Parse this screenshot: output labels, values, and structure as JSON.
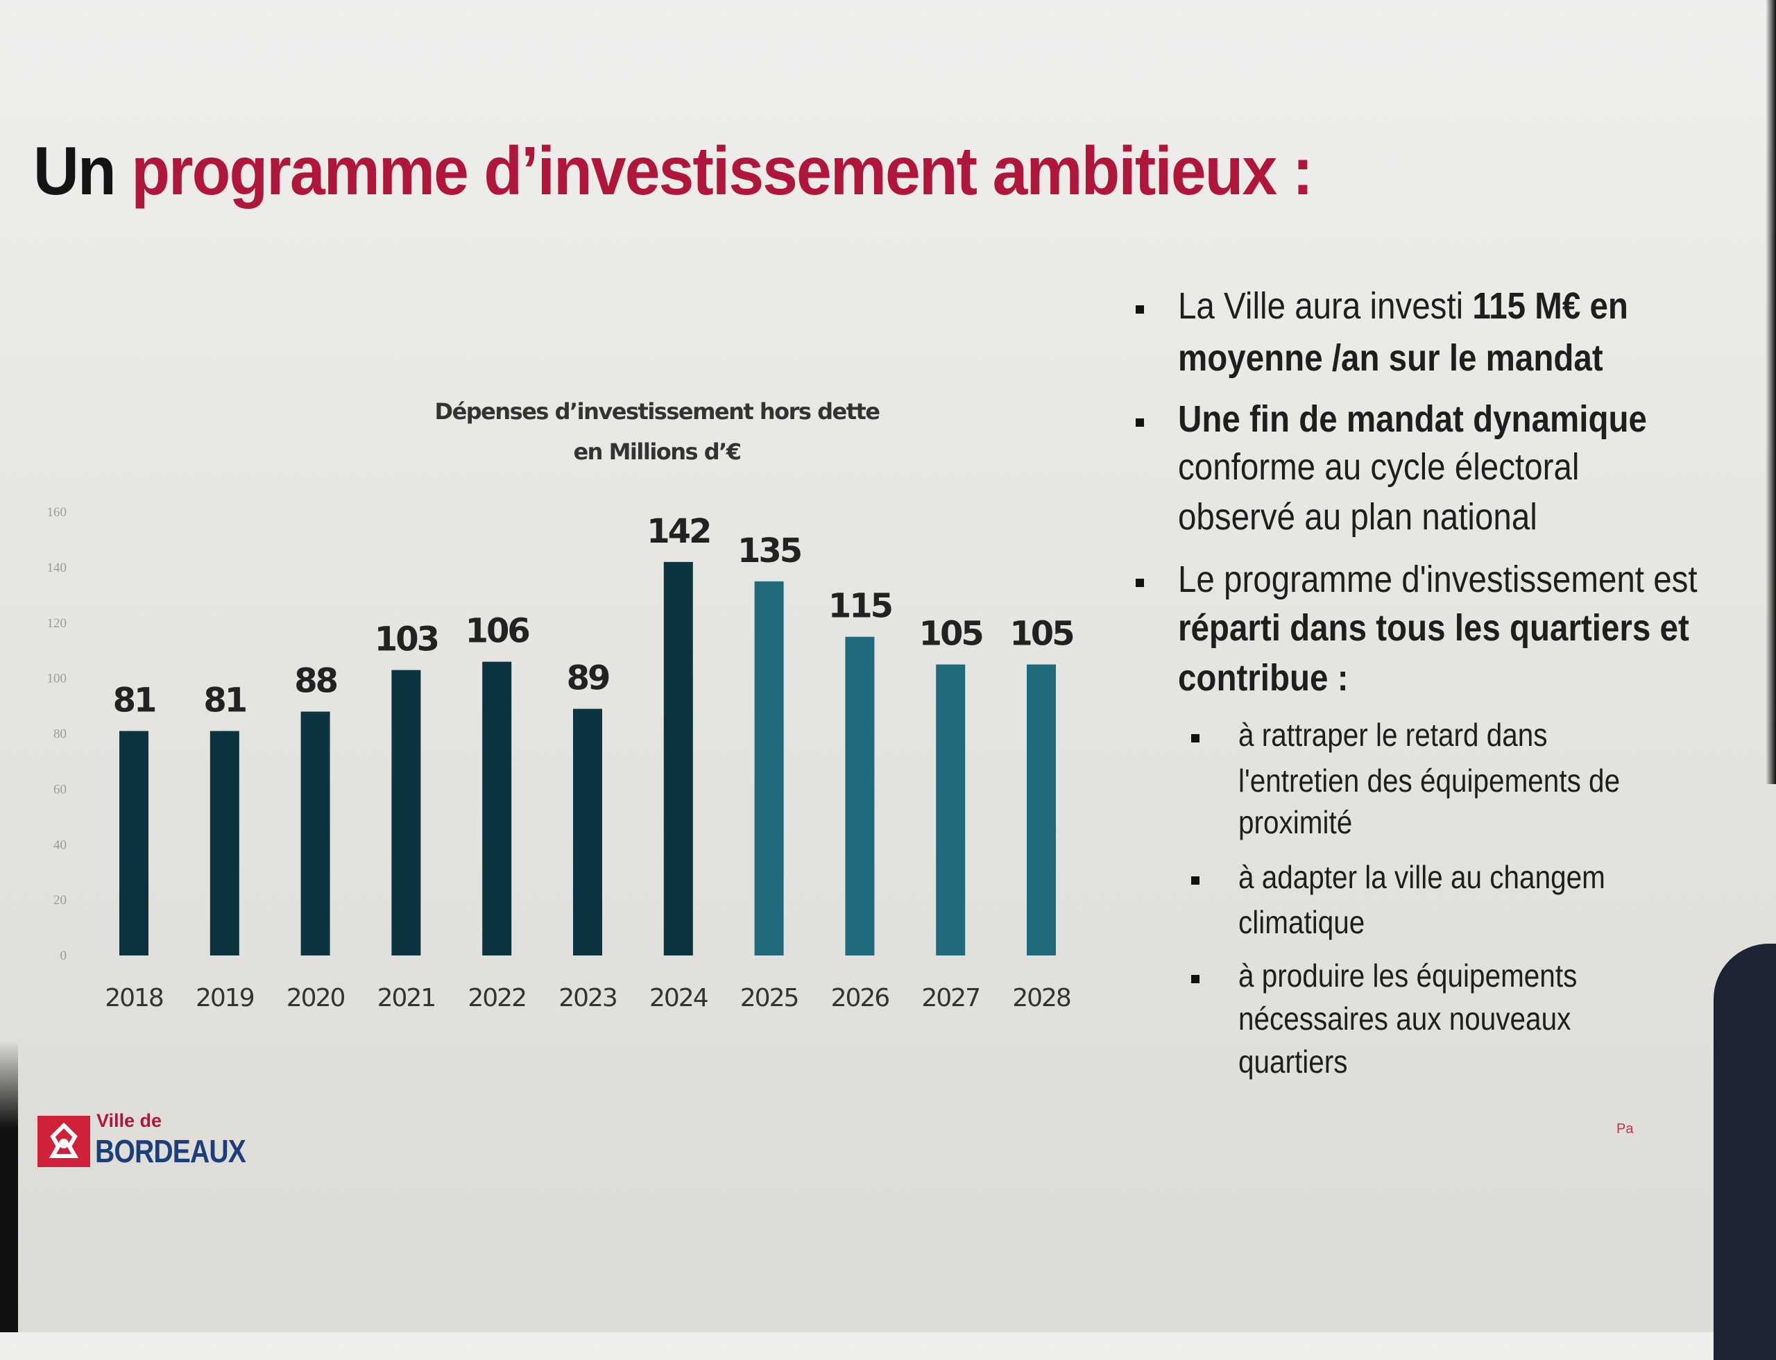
{
  "slide": {
    "title_part1": "Un ",
    "title_part2": "programme d’investissement ambitieux :",
    "logo": {
      "line1": "Ville de",
      "line2": "BORDEAUX"
    },
    "page_mark": "Pa"
  },
  "bullets": [
    {
      "level": 1,
      "lines": [
        [
          {
            "t": "La Ville aura investi ",
            "b": false
          },
          {
            "t": "115 M€ en",
            "b": true
          }
        ],
        [
          {
            "t": "moyenne /an sur le mandat",
            "b": true
          }
        ]
      ]
    },
    {
      "level": 1,
      "lines": [
        [
          {
            "t": "Une fin de mandat dynamique",
            "b": true
          }
        ],
        [
          {
            "t": "conforme au cycle électoral",
            "b": false
          }
        ],
        [
          {
            "t": "observé au plan national",
            "b": false
          }
        ]
      ]
    },
    {
      "level": 1,
      "lines": [
        [
          {
            "t": "Le programme d'investissement est",
            "b": false
          }
        ],
        [
          {
            "t": "réparti dans tous les quartiers et",
            "b": true
          }
        ],
        [
          {
            "t": "contribue :",
            "b": true
          }
        ]
      ]
    },
    {
      "level": 2,
      "lines": [
        [
          {
            "t": "à rattraper le retard dans",
            "b": false
          }
        ],
        [
          {
            "t": "l'entretien des équipements de",
            "b": false
          }
        ],
        [
          {
            "t": "proximité",
            "b": false
          }
        ]
      ]
    },
    {
      "level": 2,
      "lines": [
        [
          {
            "t": "à adapter la ville au changem",
            "b": false
          }
        ],
        [
          {
            "t": "climatique",
            "b": false
          }
        ]
      ]
    },
    {
      "level": 2,
      "lines": [
        [
          {
            "t": "à produire les équipements",
            "b": false
          }
        ],
        [
          {
            "t": "nécessaires aux nouveaux",
            "b": false
          }
        ],
        [
          {
            "t": "quartiers",
            "b": false
          }
        ]
      ]
    }
  ],
  "chart_data": {
    "type": "bar",
    "title": "Dépenses d’investissement hors dette",
    "subtitle": "en Millions d’€",
    "categories": [
      "2018",
      "2019",
      "2020",
      "2021",
      "2022",
      "2023",
      "2024",
      "2025",
      "2026",
      "2027",
      "2028"
    ],
    "values": [
      81,
      81,
      88,
      103,
      106,
      89,
      142,
      135,
      115,
      105,
      105
    ],
    "series_kind": [
      "realised",
      "realised",
      "realised",
      "realised",
      "realised",
      "realised",
      "realised",
      "forecast",
      "forecast",
      "forecast",
      "forecast"
    ],
    "colors": {
      "realised": "#0b3440",
      "forecast": "#1f6a7c"
    },
    "ylim": [
      0,
      160
    ],
    "yticks": [
      0,
      20,
      40,
      60,
      80,
      100,
      120,
      140,
      160
    ],
    "xlabel": "",
    "ylabel": "",
    "grid": false,
    "data_labels": true
  }
}
